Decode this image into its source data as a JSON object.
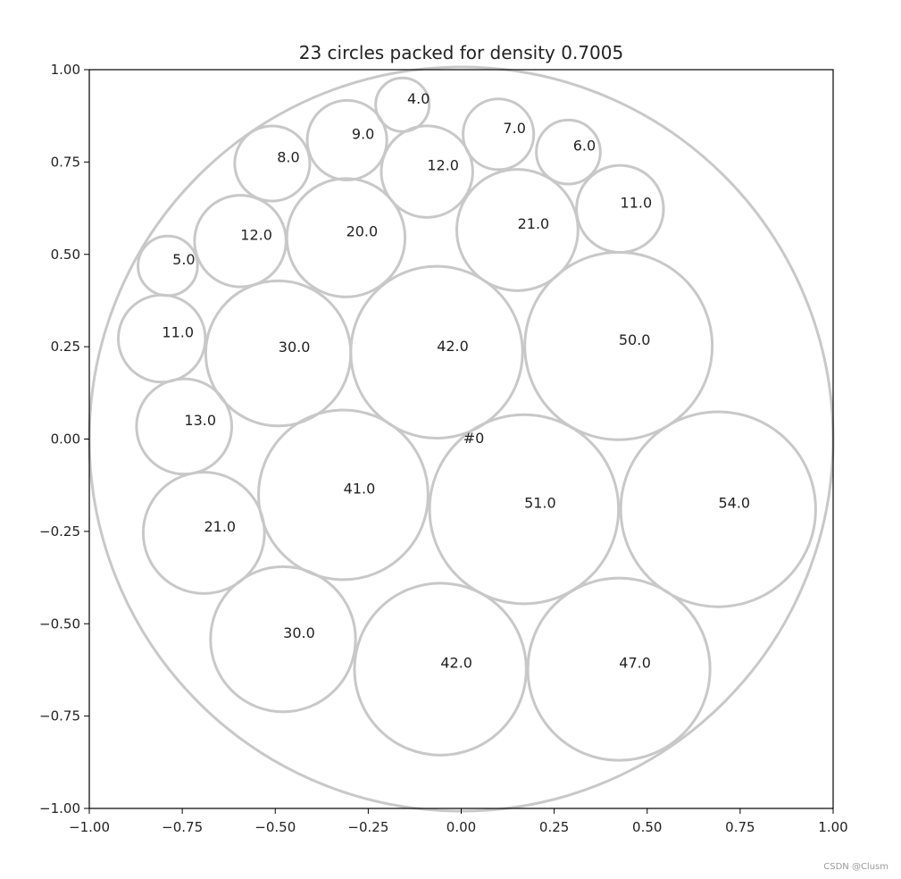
{
  "chart_data": {
    "type": "scatter",
    "title": "23 circles packed for density 0.7005",
    "xlabel": "",
    "ylabel": "",
    "xlim": [
      -1.0,
      1.0
    ],
    "ylim": [
      -1.0,
      1.0
    ],
    "grid": false,
    "xticks": [
      "−1.00",
      "−0.75",
      "−0.50",
      "−0.25",
      "0.00",
      "0.25",
      "0.50",
      "0.75",
      "1.00"
    ],
    "yticks": [
      "1.00",
      "0.75",
      "0.50",
      "0.25",
      "0.00",
      "−0.25",
      "−0.50",
      "−0.75",
      "−1.00"
    ],
    "xtick_values": [
      -1.0,
      -0.75,
      -0.5,
      -0.25,
      0.0,
      0.25,
      0.5,
      0.75,
      1.0
    ],
    "ytick_values": [
      1.0,
      0.75,
      0.5,
      0.25,
      0.0,
      -0.25,
      -0.5,
      -0.75,
      -1.0
    ],
    "circle_color": "#c8c8c8",
    "container": {
      "x": 0.0,
      "y": 0.0,
      "r": 1.0,
      "label": "#0"
    },
    "circles": [
      {
        "label": "4.0",
        "x": -0.158,
        "y": 0.905,
        "r": 0.072
      },
      {
        "label": "9.0",
        "x": -0.307,
        "y": 0.809,
        "r": 0.107
      },
      {
        "label": "8.0",
        "x": -0.508,
        "y": 0.746,
        "r": 0.101
      },
      {
        "label": "7.0",
        "x": 0.1,
        "y": 0.825,
        "r": 0.095
      },
      {
        "label": "6.0",
        "x": 0.288,
        "y": 0.777,
        "r": 0.086
      },
      {
        "label": "12.0",
        "x": -0.092,
        "y": 0.724,
        "r": 0.123
      },
      {
        "label": "11.0",
        "x": 0.427,
        "y": 0.623,
        "r": 0.117
      },
      {
        "label": "21.0",
        "x": 0.151,
        "y": 0.566,
        "r": 0.163
      },
      {
        "label": "20.0",
        "x": -0.31,
        "y": 0.545,
        "r": 0.159
      },
      {
        "label": "12.0",
        "x": -0.594,
        "y": 0.536,
        "r": 0.123
      },
      {
        "label": "5.0",
        "x": -0.789,
        "y": 0.469,
        "r": 0.08
      },
      {
        "label": "11.0",
        "x": -0.805,
        "y": 0.272,
        "r": 0.117
      },
      {
        "label": "30.0",
        "x": -0.492,
        "y": 0.232,
        "r": 0.195
      },
      {
        "label": "42.0",
        "x": -0.066,
        "y": 0.235,
        "r": 0.231
      },
      {
        "label": "50.0",
        "x": 0.423,
        "y": 0.252,
        "r": 0.252
      },
      {
        "label": "13.0",
        "x": -0.745,
        "y": 0.034,
        "r": 0.128
      },
      {
        "label": "41.0",
        "x": -0.317,
        "y": -0.151,
        "r": 0.228
      },
      {
        "label": "51.0",
        "x": 0.169,
        "y": -0.19,
        "r": 0.254
      },
      {
        "label": "54.0",
        "x": 0.691,
        "y": -0.19,
        "r": 0.262
      },
      {
        "label": "21.0",
        "x": -0.692,
        "y": -0.254,
        "r": 0.163
      },
      {
        "label": "30.0",
        "x": -0.479,
        "y": -0.542,
        "r": 0.195
      },
      {
        "label": "42.0",
        "x": -0.056,
        "y": -0.623,
        "r": 0.231
      },
      {
        "label": "47.0",
        "x": 0.424,
        "y": -0.623,
        "r": 0.245
      }
    ]
  },
  "watermark": "CSDN @Clusm"
}
